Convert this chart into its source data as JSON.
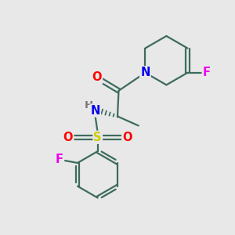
{
  "bg_color": "#e8e8e8",
  "bond_color": "#3d6b5e",
  "bond_width": 1.6,
  "atom_colors": {
    "O": "#ff0000",
    "N": "#0000ee",
    "F": "#ee00ee",
    "S": "#cccc00",
    "H": "#777777",
    "C": "#3d6b5e"
  },
  "font_size": 10.5
}
